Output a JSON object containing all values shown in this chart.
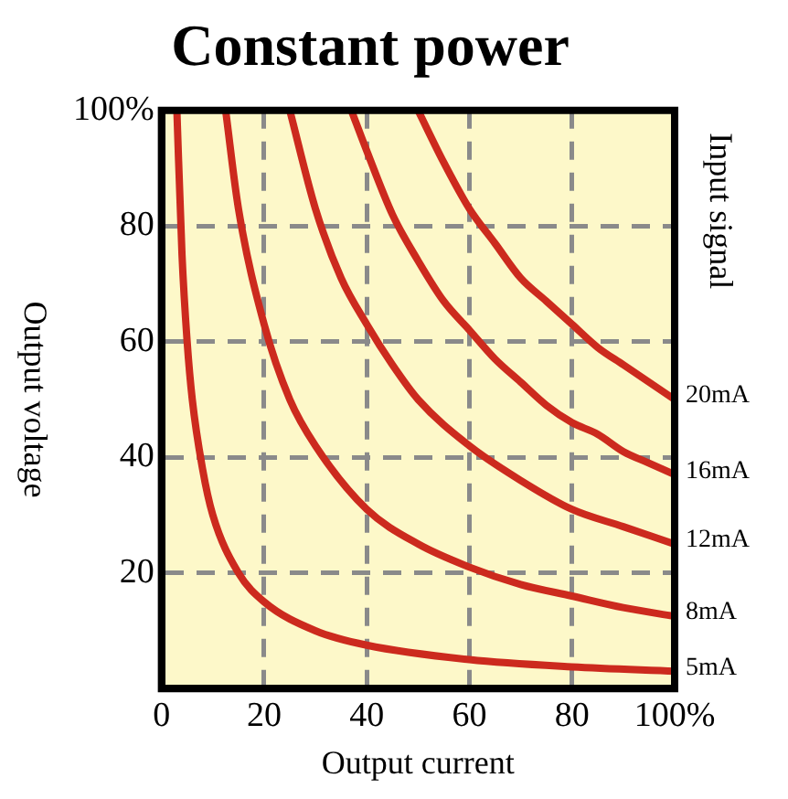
{
  "chart_data": {
    "type": "line",
    "title": "Constant power",
    "xlabel": "Output current",
    "ylabel": "Output voltage",
    "y2label": "Input signal",
    "xlim": [
      0,
      100
    ],
    "xticks": [
      0,
      20,
      40,
      60,
      80,
      {
        "value": 100,
        "label": "100%"
      }
    ],
    "ylim": [
      0,
      100
    ],
    "yticks": [
      {
        "value": 0,
        "label": null
      },
      20,
      40,
      60,
      80,
      {
        "value": 100,
        "label": "100%"
      }
    ],
    "grid": true,
    "legend": false,
    "marker": "none",
    "line_style": "solid",
    "series": [
      {
        "name": "20mA",
        "color": "#cc2a1e",
        "x": [
          50,
          55,
          60,
          65,
          70,
          75,
          80,
          85,
          90,
          95,
          100
        ],
        "values": [
          100,
          91,
          83,
          77,
          71,
          67,
          63,
          59,
          56,
          53,
          50
        ]
      },
      {
        "name": "16mA",
        "color": "#cc2a1e",
        "x": [
          37,
          40,
          45,
          50,
          55,
          60,
          65,
          70,
          75,
          80,
          85,
          90,
          95,
          100
        ],
        "values": [
          100,
          93,
          82,
          74,
          67,
          62,
          57,
          53,
          49,
          46,
          44,
          41,
          39,
          37
        ]
      },
      {
        "name": "12mA",
        "color": "#cc2a1e",
        "x": [
          25,
          30,
          35,
          40,
          45,
          50,
          60,
          70,
          80,
          90,
          100
        ],
        "values": [
          100,
          83,
          71,
          63,
          56,
          50,
          42,
          36,
          31,
          28,
          25
        ]
      },
      {
        "name": "8mA",
        "color": "#cc2a1e",
        "x": [
          12.5,
          15,
          20,
          25,
          30,
          40,
          50,
          60,
          70,
          80,
          90,
          100
        ],
        "values": [
          100,
          83,
          63,
          50,
          42,
          31,
          25,
          21,
          18,
          16,
          14,
          12.5
        ]
      },
      {
        "name": "5mA",
        "color": "#cc2a1e",
        "x": [
          3,
          4,
          5,
          6,
          8,
          10,
          15,
          20,
          30,
          40,
          60,
          80,
          100
        ],
        "values": [
          100,
          75,
          60,
          50,
          38,
          30,
          20,
          15,
          10,
          7.5,
          5,
          3.75,
          3
        ]
      }
    ]
  }
}
